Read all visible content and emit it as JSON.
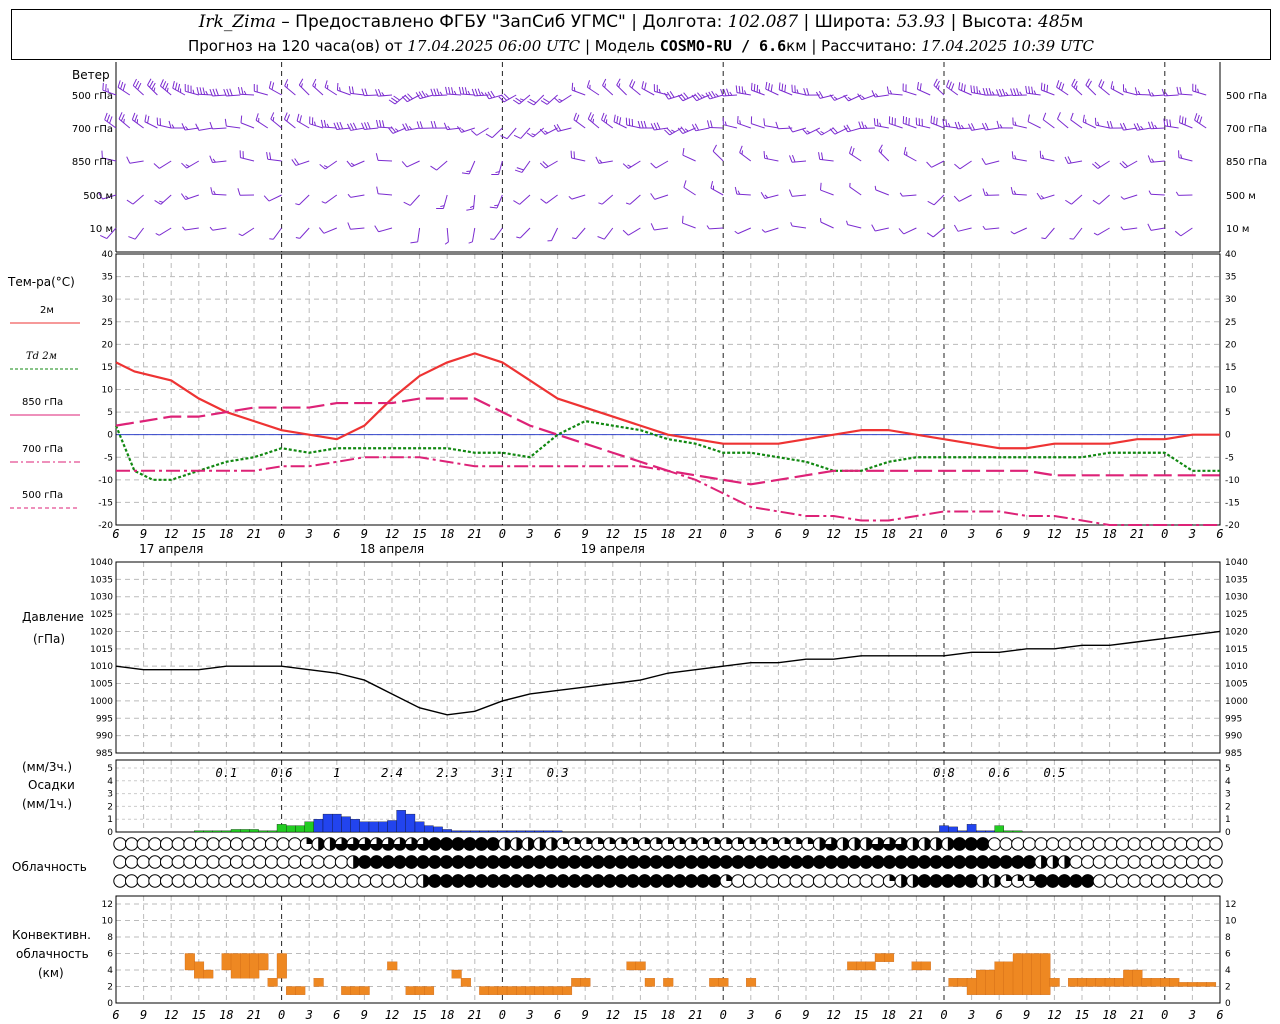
{
  "header": {
    "station": "Irk_Zima",
    "provider": "Предоставлено ФГБУ \"ЗапСиб УГМС\"",
    "lon_label": "Долгота:",
    "lon": "102.087",
    "lat_label": "Широта:",
    "lat": "53.93",
    "alt_label": "Высота:",
    "alt": "485",
    "alt_unit": "м",
    "forecast_prefix": "Прогноз на 120 часа(ов) от",
    "forecast_time": "17.04.2025 06:00 UTC",
    "model_label": "Модель",
    "model": "COSMO-RU / 6.6",
    "model_unit": "км",
    "computed_label": "Рассчитано:",
    "computed": "17.04.2025 10:39 UTC"
  },
  "time_axis": {
    "hour_labels": [
      "6",
      "9",
      "12",
      "15",
      "18",
      "21",
      "0",
      "3",
      "6",
      "9",
      "12",
      "15",
      "18",
      "21",
      "0",
      "3",
      "6",
      "9",
      "12",
      "15",
      "18",
      "21",
      "0",
      "3",
      "6",
      "9",
      "12"
    ],
    "day_labels": [
      "17 апреля",
      "18 апреля",
      "19 апреля"
    ]
  },
  "wind_panel": {
    "title": "Ветер",
    "levels": [
      "500 гПа",
      "700 гПа",
      "850 гПа",
      "500 м",
      "10 м"
    ],
    "color": "#7b2bd0"
  },
  "temp_panel": {
    "title": "Тем-ра(°С)",
    "legend": [
      {
        "label": "2м",
        "color": "#ee3333"
      },
      {
        "label": "Td 2м",
        "color": "#118811"
      },
      {
        "label": "850 гПа",
        "color": "#dd2277"
      },
      {
        "label": "700 гПа",
        "color": "#dd2277"
      },
      {
        "label": "500 гПа",
        "color": "#dd2277"
      }
    ],
    "ylim": [
      -20,
      40
    ],
    "ticks": [
      "40",
      "35",
      "30",
      "25",
      "20",
      "15",
      "10",
      "5",
      "0",
      "-5",
      "-10",
      "-15",
      "-20"
    ]
  },
  "pressure_panel": {
    "title": "Давление",
    "unit": "(гПа)",
    "ylim": [
      985,
      1040
    ],
    "ticks": [
      "1040",
      "1035",
      "1030",
      "1025",
      "1020",
      "1015",
      "1010",
      "1005",
      "1000",
      "995",
      "990",
      "985"
    ]
  },
  "precip_panel": {
    "unit1": "(мм/3ч.)",
    "title": "Осадки",
    "unit2": "(мм/1ч.)",
    "ticks": [
      "5",
      "4",
      "3",
      "2",
      "1",
      "0"
    ],
    "totals": [
      {
        "t": 12,
        "v": "0.1"
      },
      {
        "t": 18,
        "v": "0.6"
      },
      {
        "t": 24,
        "v": "1"
      },
      {
        "t": 30,
        "v": "2.4"
      },
      {
        "t": 36,
        "v": "2.3"
      },
      {
        "t": 42,
        "v": "3.1"
      },
      {
        "t": 48,
        "v": "0.3"
      },
      {
        "t": 90,
        "v": "0.8"
      },
      {
        "t": 96,
        "v": "0.6"
      },
      {
        "t": 102,
        "v": "0.5"
      }
    ]
  },
  "cloud_panel": {
    "title": "Облачность"
  },
  "conv_panel": {
    "title1": "Конвективн.",
    "title2": "облачность",
    "unit": "(км)",
    "ticks": [
      "12",
      "10",
      "8",
      "6",
      "4",
      "2",
      "0"
    ]
  },
  "chart_data": {
    "type": "line",
    "x_unit": "hours since 17.04.2025 06:00 UTC",
    "temperature": {
      "series": [
        {
          "name": "2м",
          "x": [
            0,
            2,
            4,
            6,
            9,
            12,
            15,
            18,
            21,
            24,
            27,
            30,
            33,
            36,
            39,
            42,
            45,
            48,
            51,
            54,
            57,
            60,
            63,
            66,
            69,
            72,
            75,
            78,
            81,
            84,
            87,
            90,
            93,
            96,
            99,
            102,
            105,
            108,
            111,
            114,
            117,
            120
          ],
          "y": [
            16,
            14,
            13,
            12,
            8,
            5,
            3,
            1,
            0,
            -1,
            2,
            8,
            13,
            16,
            18,
            16,
            12,
            8,
            6,
            4,
            2,
            0,
            -1,
            -2,
            -2,
            -2,
            -1,
            0,
            1,
            1,
            0,
            -1,
            -2,
            -3,
            -3,
            -2,
            -2,
            -2,
            -1,
            -1,
            0,
            0
          ]
        },
        {
          "name": "Td 2м",
          "x": [
            0,
            2,
            4,
            6,
            9,
            12,
            15,
            18,
            21,
            24,
            27,
            30,
            33,
            36,
            39,
            42,
            45,
            48,
            51,
            54,
            57,
            60,
            63,
            66,
            69,
            72,
            75,
            78,
            81,
            84,
            87,
            90,
            93,
            96,
            99,
            102,
            105,
            108,
            111,
            114,
            117,
            120
          ],
          "y": [
            2,
            -8,
            -10,
            -10,
            -8,
            -6,
            -5,
            -3,
            -4,
            -3,
            -3,
            -3,
            -3,
            -3,
            -4,
            -4,
            -5,
            0,
            3,
            2,
            1,
            -1,
            -2,
            -4,
            -4,
            -5,
            -6,
            -8,
            -8,
            -6,
            -5,
            -5,
            -5,
            -5,
            -5,
            -5,
            -5,
            -4,
            -4,
            -4,
            -8,
            -8
          ]
        },
        {
          "name": "850 гПа",
          "x": [
            0,
            3,
            6,
            9,
            12,
            15,
            18,
            21,
            24,
            27,
            30,
            33,
            36,
            39,
            42,
            45,
            48,
            51,
            54,
            57,
            60,
            63,
            66,
            69,
            72,
            75,
            78,
            81,
            84,
            87,
            90,
            93,
            96,
            99,
            102,
            105,
            108,
            111,
            114,
            117,
            120
          ],
          "y": [
            2,
            3,
            4,
            4,
            5,
            6,
            6,
            6,
            7,
            7,
            7,
            8,
            8,
            8,
            5,
            2,
            0,
            -2,
            -4,
            -6,
            -8,
            -9,
            -10,
            -11,
            -10,
            -9,
            -8,
            -8,
            -8,
            -8,
            -8,
            -8,
            -8,
            -8,
            -9,
            -9,
            -9,
            -9,
            -9,
            -9,
            -9
          ]
        },
        {
          "name": "700 гПа",
          "x": [
            0,
            3,
            6,
            9,
            12,
            15,
            18,
            21,
            24,
            27,
            30,
            33,
            36,
            39,
            42,
            45,
            48,
            51,
            54,
            57,
            60,
            63,
            66,
            69,
            72,
            75,
            78,
            81,
            84,
            87,
            90,
            93,
            96,
            99,
            102,
            105,
            108,
            111,
            114,
            117,
            120
          ],
          "y": [
            -8,
            -8,
            -8,
            -8,
            -8,
            -8,
            -7,
            -7,
            -6,
            -5,
            -5,
            -5,
            -6,
            -7,
            -7,
            -7,
            -7,
            -7,
            -7,
            -7,
            -8,
            -10,
            -13,
            -16,
            -17,
            -18,
            -18,
            -19,
            -19,
            -18,
            -17,
            -17,
            -17,
            -18,
            -18,
            -19,
            -20,
            -20,
            -20,
            -20,
            -20
          ]
        }
      ],
      "ylim": [
        -20,
        40
      ]
    },
    "pressure": {
      "x": [
        0,
        3,
        6,
        9,
        12,
        15,
        18,
        21,
        24,
        27,
        30,
        33,
        36,
        39,
        42,
        45,
        48,
        51,
        54,
        57,
        60,
        63,
        66,
        69,
        72,
        75,
        78,
        81,
        84,
        87,
        90,
        93,
        96,
        99,
        102,
        105,
        108,
        111,
        114,
        117,
        120
      ],
      "y": [
        1010,
        1009,
        1009,
        1009,
        1010,
        1010,
        1010,
        1009,
        1008,
        1006,
        1002,
        998,
        996,
        997,
        1000,
        1002,
        1003,
        1004,
        1005,
        1006,
        1008,
        1009,
        1010,
        1011,
        1011,
        1012,
        1012,
        1013,
        1013,
        1013,
        1013,
        1014,
        1014,
        1015,
        1015,
        1016,
        1016,
        1017,
        1018,
        1019,
        1020
      ],
      "ylim": [
        985,
        1040
      ]
    },
    "precip_hourly": {
      "x": [
        9,
        10,
        11,
        12,
        13,
        14,
        15,
        16,
        17,
        18,
        19,
        20,
        21,
        22,
        23,
        24,
        25,
        26,
        27,
        28,
        29,
        30,
        31,
        32,
        33,
        34,
        35,
        36,
        37,
        38,
        39,
        40,
        41,
        42,
        43,
        44,
        45,
        46,
        47,
        48,
        90,
        91,
        92,
        93,
        94,
        95,
        96,
        97,
        98
      ],
      "y": [
        0.1,
        0.1,
        0.1,
        0.1,
        0.2,
        0.2,
        0.2,
        0.1,
        0.1,
        0.6,
        0.5,
        0.5,
        0.8,
        1.0,
        1.4,
        1.4,
        1.2,
        1.0,
        0.8,
        0.8,
        0.8,
        0.9,
        1.7,
        1.4,
        0.8,
        0.5,
        0.4,
        0.2,
        0.1,
        0.1,
        0.1,
        0.1,
        0.1,
        0.1,
        0.1,
        0.1,
        0.1,
        0.1,
        0.1,
        0.1,
        0.5,
        0.4,
        0.1,
        0.6,
        0.1,
        0.1,
        0.5,
        0.1,
        0.1
      ],
      "colors": [
        "g",
        "g",
        "g",
        "g",
        "g",
        "g",
        "g",
        "g",
        "g",
        "g",
        "g",
        "g",
        "g",
        "b",
        "b",
        "b",
        "b",
        "b",
        "b",
        "b",
        "b",
        "b",
        "b",
        "b",
        "b",
        "b",
        "b",
        "b",
        "b",
        "b",
        "b",
        "b",
        "b",
        "b",
        "b",
        "b",
        "b",
        "b",
        "b",
        "b",
        "b",
        "b",
        "b",
        "b",
        "b",
        "b",
        "g",
        "g",
        "g"
      ]
    },
    "cloud_cover": {
      "rows": [
        "00000000000000001224444444433333322222111111111111111111111124222444222233300000000000000000000",
        "00000000000000000000233333333333333333333333333333333333333333333333333333333332220000000000000",
        "00000000000000000000000000233333333333333333333333331000000000000012233333221113333300000000000"
      ]
    },
    "conv_cloud": {
      "boxes": [
        {
          "t": 8,
          "b": 4,
          "h": 6
        },
        {
          "t": 9,
          "b": 3,
          "h": 5
        },
        {
          "t": 10,
          "b": 3,
          "h": 4
        },
        {
          "t": 12,
          "b": 4,
          "h": 6
        },
        {
          "t": 13,
          "b": 3,
          "h": 6
        },
        {
          "t": 14,
          "b": 3,
          "h": 6
        },
        {
          "t": 15,
          "b": 3,
          "h": 6
        },
        {
          "t": 16,
          "b": 4,
          "h": 6
        },
        {
          "t": 17,
          "b": 2,
          "h": 3
        },
        {
          "t": 18,
          "b": 3,
          "h": 6
        },
        {
          "t": 19,
          "b": 1,
          "h": 2
        },
        {
          "t": 20,
          "b": 1,
          "h": 2
        },
        {
          "t": 22,
          "b": 2,
          "h": 3
        },
        {
          "t": 25,
          "b": 1,
          "h": 2
        },
        {
          "t": 26,
          "b": 1,
          "h": 2
        },
        {
          "t": 27,
          "b": 1,
          "h": 2
        },
        {
          "t": 30,
          "b": 4,
          "h": 5
        },
        {
          "t": 32,
          "b": 1,
          "h": 2
        },
        {
          "t": 33,
          "b": 1,
          "h": 2
        },
        {
          "t": 34,
          "b": 1,
          "h": 2
        },
        {
          "t": 37,
          "b": 3,
          "h": 4
        },
        {
          "t": 38,
          "b": 2,
          "h": 3
        },
        {
          "t": 40,
          "b": 1,
          "h": 2
        },
        {
          "t": 41,
          "b": 1,
          "h": 2
        },
        {
          "t": 42,
          "b": 1,
          "h": 2
        },
        {
          "t": 43,
          "b": 1,
          "h": 2
        },
        {
          "t": 44,
          "b": 1,
          "h": 2
        },
        {
          "t": 45,
          "b": 1,
          "h": 2
        },
        {
          "t": 46,
          "b": 1,
          "h": 2
        },
        {
          "t": 47,
          "b": 1,
          "h": 2
        },
        {
          "t": 48,
          "b": 1,
          "h": 2
        },
        {
          "t": 49,
          "b": 1,
          "h": 2
        },
        {
          "t": 50,
          "b": 2,
          "h": 3
        },
        {
          "t": 51,
          "b": 2,
          "h": 3
        },
        {
          "t": 56,
          "b": 4,
          "h": 5
        },
        {
          "t": 57,
          "b": 4,
          "h": 5
        },
        {
          "t": 58,
          "b": 2,
          "h": 3
        },
        {
          "t": 60,
          "b": 2,
          "h": 3
        },
        {
          "t": 65,
          "b": 2,
          "h": 3
        },
        {
          "t": 66,
          "b": 2,
          "h": 3
        },
        {
          "t": 69,
          "b": 2,
          "h": 3
        },
        {
          "t": 80,
          "b": 4,
          "h": 5
        },
        {
          "t": 81,
          "b": 4,
          "h": 5
        },
        {
          "t": 82,
          "b": 4,
          "h": 5
        },
        {
          "t": 83,
          "b": 5,
          "h": 6
        },
        {
          "t": 84,
          "b": 5,
          "h": 6
        },
        {
          "t": 87,
          "b": 4,
          "h": 5
        },
        {
          "t": 88,
          "b": 4,
          "h": 5
        },
        {
          "t": 91,
          "b": 2,
          "h": 3
        },
        {
          "t": 92,
          "b": 2,
          "h": 3
        },
        {
          "t": 93,
          "b": 1,
          "h": 3
        },
        {
          "t": 94,
          "b": 1,
          "h": 4
        },
        {
          "t": 95,
          "b": 1,
          "h": 4
        },
        {
          "t": 96,
          "b": 1,
          "h": 5
        },
        {
          "t": 97,
          "b": 1,
          "h": 5
        },
        {
          "t": 98,
          "b": 1,
          "h": 6
        },
        {
          "t": 99,
          "b": 1,
          "h": 6
        },
        {
          "t": 100,
          "b": 1,
          "h": 6
        },
        {
          "t": 101,
          "b": 1,
          "h": 6
        },
        {
          "t": 102,
          "b": 2,
          "h": 3
        },
        {
          "t": 104,
          "b": 2,
          "h": 3
        },
        {
          "t": 105,
          "b": 2,
          "h": 3
        },
        {
          "t": 106,
          "b": 2,
          "h": 3
        },
        {
          "t": 107,
          "b": 2,
          "h": 3
        },
        {
          "t": 108,
          "b": 2,
          "h": 3
        },
        {
          "t": 109,
          "b": 2,
          "h": 3
        },
        {
          "t": 110,
          "b": 2,
          "h": 4
        },
        {
          "t": 111,
          "b": 2,
          "h": 4
        },
        {
          "t": 112,
          "b": 2,
          "h": 3
        },
        {
          "t": 113,
          "b": 2,
          "h": 3
        },
        {
          "t": 114,
          "b": 2,
          "h": 3
        },
        {
          "t": 115,
          "b": 2,
          "h": 3
        },
        {
          "t": 116,
          "b": 2,
          "h": 2.5
        },
        {
          "t": 117,
          "b": 2,
          "h": 2.5
        },
        {
          "t": 118,
          "b": 2,
          "h": 2.5
        },
        {
          "t": 119,
          "b": 2,
          "h": 2.5
        }
      ]
    }
  }
}
